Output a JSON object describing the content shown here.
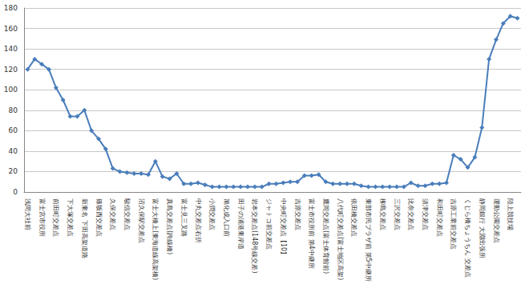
{
  "chart_data": {
    "type": "line",
    "categories": [
      "浅間大社前",
      null,
      "富士宮市役所",
      null,
      "前田町交差点",
      null,
      "下大塚交差点",
      null,
      "新東名 下田高架道路",
      null,
      "篠坂西交差点",
      null,
      "久保交差点",
      null,
      "駿信交差点",
      null,
      "沼久保駅交差点",
      null,
      "富士大橋上(東海道線高架橋)",
      null,
      "真島交差点(跨線橋)",
      null,
      "富士見三叉路",
      null,
      "中丸交差点右折",
      null,
      "小潤交差点",
      null,
      "旭化成入口前",
      null,
      "田子の浦港東岸道",
      null,
      "岩本交差点(148号線交差)",
      null,
      "ジャトコ前交差点",
      null,
      "中央町交差点【10】",
      null,
      "吉原交差点",
      null,
      "富士市役所前 第4中継所",
      null,
      "鷹岡交差点(富士体育館前)",
      null,
      "八代町交差点(富士地区高架)",
      null,
      "依田橋交差点",
      null,
      "東部市民プラザ前 第5中継所",
      null,
      "柳島交差点",
      null,
      "三沢交差点",
      null,
      "比奈交差点",
      null,
      "須津交差点",
      null,
      "和田町交差点",
      null,
      "吉原工業前交差点",
      null,
      "くじら橋ちょうちん 交差点",
      null,
      "静岡銀行 大淵出張所",
      null,
      "運動公園交差点",
      null,
      "陸上競技場",
      null
    ],
    "values": [
      120,
      130,
      125,
      120,
      102,
      90,
      74,
      74,
      80,
      60,
      52,
      42,
      23,
      20,
      19,
      18,
      18,
      17,
      30,
      15,
      13,
      18,
      8,
      8,
      9,
      7,
      5,
      5,
      5,
      5,
      5,
      5,
      5,
      5,
      8,
      8,
      9,
      10,
      10,
      16,
      16,
      17,
      10,
      8,
      8,
      8,
      8,
      6,
      5,
      5,
      5,
      5,
      5,
      5,
      9,
      6,
      6,
      8,
      8,
      9,
      36,
      32,
      24,
      34,
      63,
      130,
      149,
      165,
      172,
      170
    ],
    "color": "#4a7ebb",
    "marker": "diamond",
    "ylim": [
      0,
      180
    ],
    "yticks": [
      0,
      20,
      40,
      60,
      80,
      100,
      120,
      140,
      160,
      180
    ],
    "grid": true
  }
}
